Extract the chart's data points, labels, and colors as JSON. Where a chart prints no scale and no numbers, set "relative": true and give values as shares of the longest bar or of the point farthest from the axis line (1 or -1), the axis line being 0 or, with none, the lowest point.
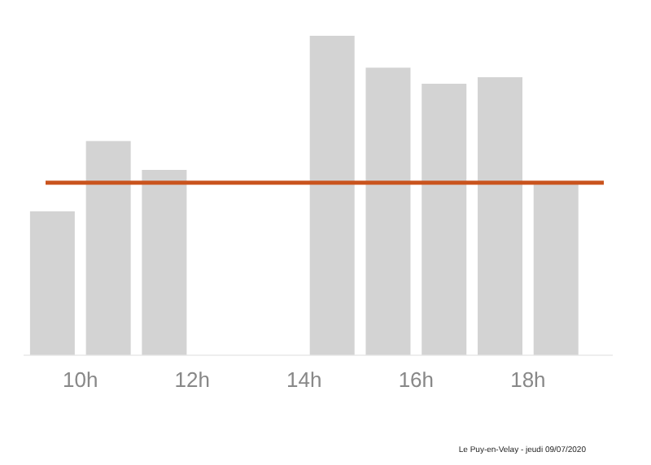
{
  "chart_data": {
    "type": "bar",
    "relative": true,
    "x": [
      9.5,
      10.5,
      11.5,
      12.5,
      13.5,
      14.5,
      15.5,
      16.5,
      17.5,
      18.5
    ],
    "values": [
      0.45,
      0.67,
      0.58,
      null,
      null,
      1,
      0.9,
      0.85,
      0.87,
      0.54
    ],
    "color": "#d3d3d3",
    "xlim": [
      9,
      19.5
    ],
    "xticks": [
      {
        "value": 10,
        "label": "10h"
      },
      {
        "value": 12,
        "label": "12h"
      },
      {
        "value": 14,
        "label": "14h"
      },
      {
        "value": 16,
        "label": "16h"
      },
      {
        "value": 18,
        "label": "18h"
      }
    ],
    "ref_lines": [
      {
        "axis": "y",
        "value": 0.54,
        "color": "#c9541e"
      }
    ],
    "grid": false,
    "legend": false,
    "annotations": [
      "Le Puy-en-Velay - jeudi 09/07/2020"
    ]
  }
}
